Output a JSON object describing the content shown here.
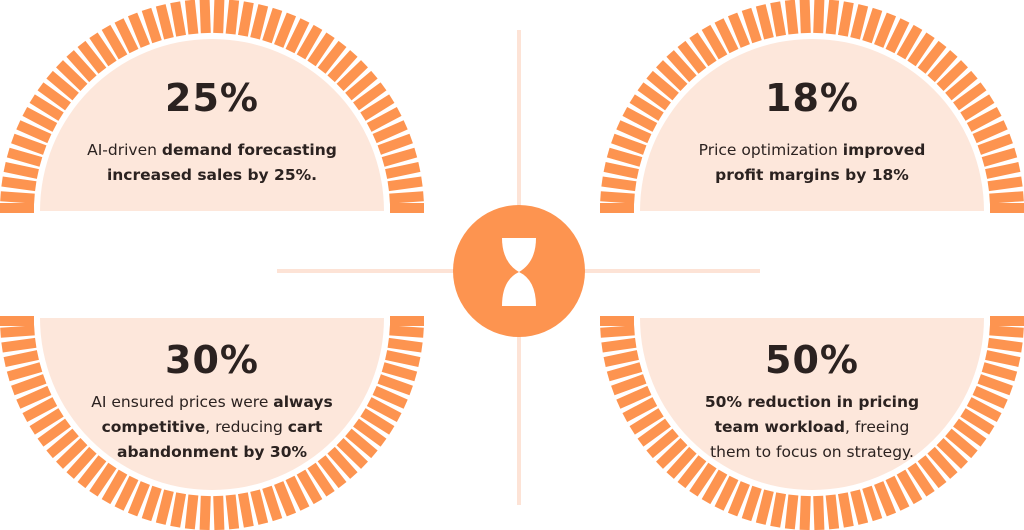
{
  "colors": {
    "accent": "#fd9450",
    "fill": "#fde7db",
    "line": "#fde3d6",
    "text": "#2b2220"
  },
  "center_icon": "hourglass-icon",
  "stats": [
    {
      "value": "25%",
      "parts": [
        {
          "t": "AI-driven ",
          "b": false
        },
        {
          "t": "demand forecasting increased sales by 25%.",
          "b": true
        }
      ]
    },
    {
      "value": "18%",
      "parts": [
        {
          "t": "Price optimization ",
          "b": false
        },
        {
          "t": "improved profit margins by 18%",
          "b": true
        }
      ]
    },
    {
      "value": "30%",
      "parts": [
        {
          "t": "AI ensured prices were ",
          "b": false
        },
        {
          "t": "always competitive",
          "b": true
        },
        {
          "t": ", reducing ",
          "b": false
        },
        {
          "t": "cart abandonment by 30%",
          "b": true
        }
      ]
    },
    {
      "value": "50%",
      "parts": [
        {
          "t": "50% reduction in pricing team workload",
          "b": true
        },
        {
          "t": ", freeing them to focus on strategy.",
          "b": false
        }
      ]
    }
  ]
}
